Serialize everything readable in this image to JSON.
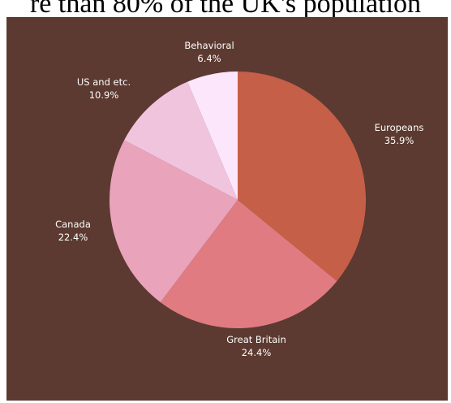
{
  "title": "re than 80% of the UK's population",
  "chart_data": {
    "type": "pie",
    "start_angle_deg": 0,
    "direction": "clockwise",
    "background": "#5c3a31",
    "slices": [
      {
        "label": "Europeans",
        "value": 35.9,
        "display": "35.9%",
        "color": "#c55f48"
      },
      {
        "label": "Great Britain",
        "value": 24.4,
        "display": "24.4%",
        "color": "#e07b81"
      },
      {
        "label": "Canada",
        "value": 22.4,
        "display": "22.4%",
        "color": "#e9a3bb"
      },
      {
        "label": "US and etc.",
        "value": 10.9,
        "display": "10.9%",
        "color": "#f1c4dd"
      },
      {
        "label": "Behavioral",
        "value": 6.4,
        "display": "6.4%",
        "color": "#fce6fb"
      }
    ]
  }
}
